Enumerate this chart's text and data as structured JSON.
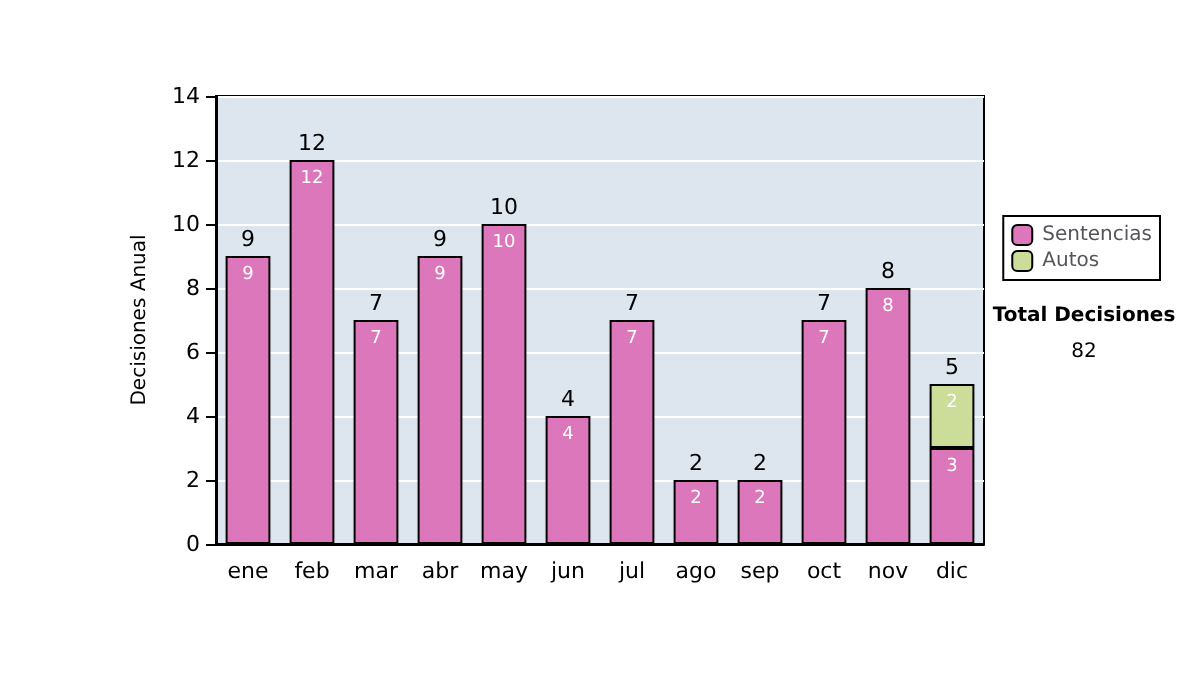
{
  "chart_data": {
    "type": "bar",
    "stacked": true,
    "ylabel": "Decisiones Anual",
    "categories": [
      "ene",
      "feb",
      "mar",
      "abr",
      "may",
      "jun",
      "jul",
      "ago",
      "sep",
      "oct",
      "nov",
      "dic"
    ],
    "series": [
      {
        "name": "Sentencias",
        "color": "#dd77bb",
        "values": [
          9,
          12,
          7,
          9,
          10,
          4,
          7,
          2,
          2,
          7,
          8,
          3
        ]
      },
      {
        "name": "Autos",
        "color": "#ccdd99",
        "values": [
          null,
          null,
          null,
          null,
          null,
          null,
          null,
          null,
          null,
          null,
          null,
          2
        ]
      }
    ],
    "data_labels": true,
    "totals": [
      "9",
      "12",
      "7",
      "9",
      "10",
      "4",
      "7",
      "2",
      "2",
      "7",
      "8",
      "5"
    ],
    "ylim": [
      0,
      14
    ],
    "yticks": [
      0,
      2,
      4,
      6,
      8,
      10,
      12,
      14
    ],
    "grid": "y",
    "legend": "right",
    "annotations": [
      "Total Decisiones",
      "82"
    ]
  }
}
